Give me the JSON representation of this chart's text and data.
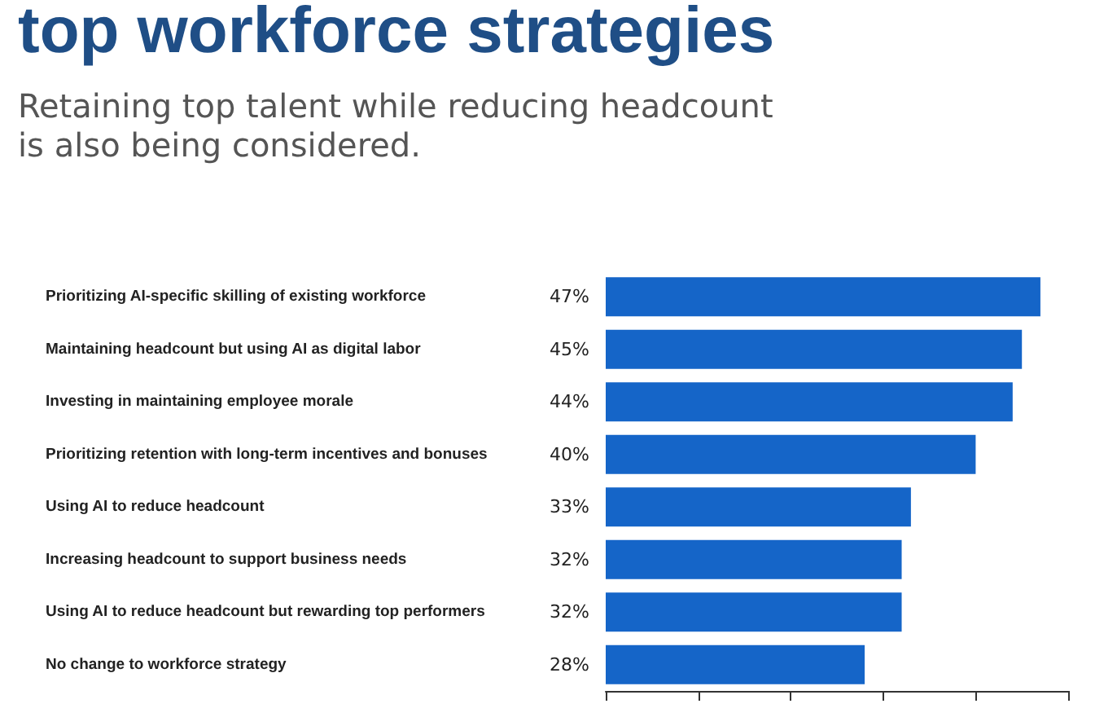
{
  "chart_data": {
    "type": "bar",
    "orientation": "horizontal",
    "title": "top workforce strategies",
    "subtitle": "Retaining top talent while reducing headcount\nis also being considered.",
    "categories": [
      "Prioritizing AI-specific skilling of existing workforce",
      "Maintaining headcount but using AI as digital labor",
      "Investing in maintaining employee morale",
      "Prioritizing retention with long-term incentives and bonuses",
      "Using AI to reduce headcount",
      "Increasing headcount to support business needs",
      "Using AI to reduce headcount but rewarding top performers",
      "No change to workforce strategy"
    ],
    "values": [
      47,
      45,
      44,
      40,
      33,
      32,
      32,
      28
    ],
    "value_labels": [
      "47%",
      "45%",
      "44%",
      "40%",
      "33%",
      "32%",
      "32%",
      "28%"
    ],
    "color": "#1565c8",
    "xlim": [
      0,
      50
    ],
    "xticks": [
      {
        "value": 0,
        "label": null
      },
      {
        "value": 10,
        "label": null
      },
      {
        "value": 20,
        "label": null
      },
      {
        "value": 30,
        "label": null
      },
      {
        "value": 40,
        "label": null
      },
      {
        "value": 50,
        "label": null
      }
    ],
    "tick_labels": "y",
    "grid": false
  }
}
